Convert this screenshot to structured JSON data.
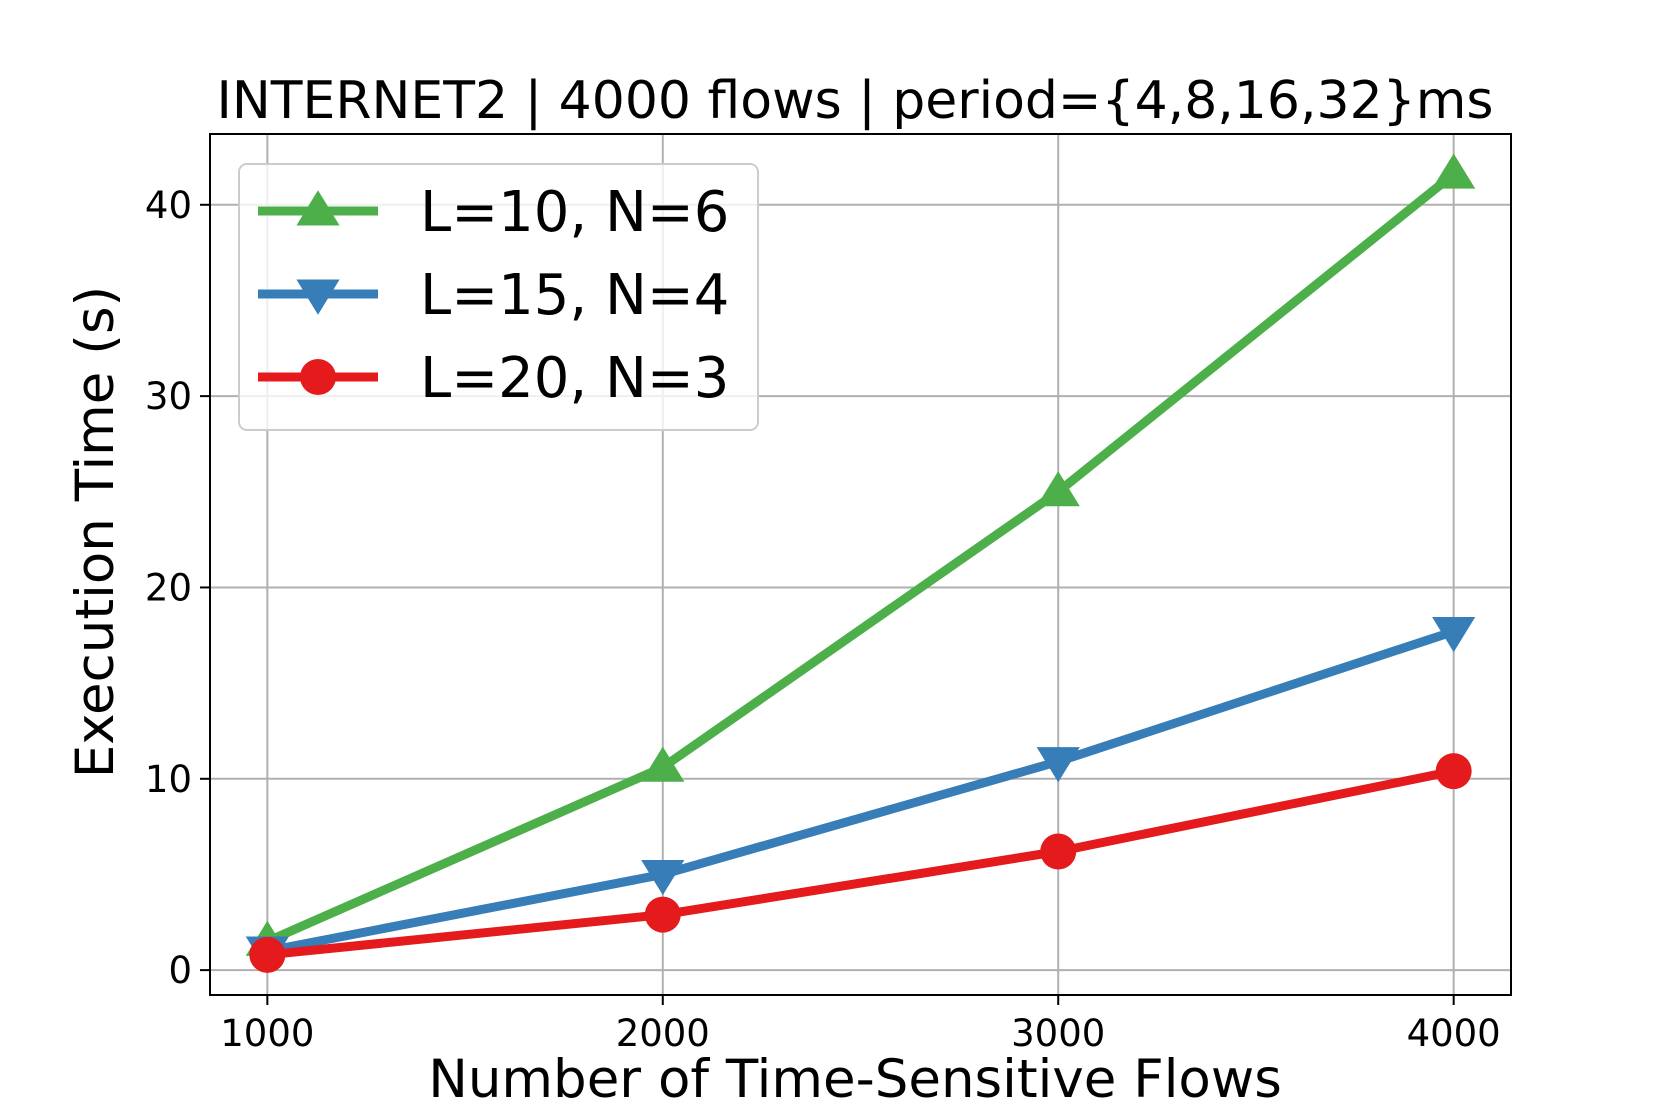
{
  "chart_data": {
    "type": "line",
    "title": "INTERNET2 | 4000 flows | period={4,8,16,32}ms",
    "xlabel": "Number of Time-Sensitive Flows",
    "ylabel": "Execution Time (s)",
    "x": [
      1000,
      2000,
      3000,
      4000
    ],
    "x_ticks": [
      1000,
      2000,
      3000,
      4000
    ],
    "x_tick_labels": [
      "1000",
      "2000",
      "3000",
      "4000"
    ],
    "xlim": [
      855,
      4145
    ],
    "y_ticks": [
      0,
      10,
      20,
      30,
      40
    ],
    "y_tick_labels": [
      "0",
      "10",
      "20",
      "30",
      "40"
    ],
    "ylim": [
      -1.3,
      43.7
    ],
    "grid": true,
    "legend_position": "top-left",
    "series": [
      {
        "name": "L=10, N=6",
        "values": [
          1.5,
          10.6,
          25.0,
          41.6
        ],
        "color": "#4daf4a",
        "marker": "triangle-up"
      },
      {
        "name": "L=15, N=4",
        "values": [
          1.0,
          5.0,
          10.9,
          17.7
        ],
        "color": "#377eb8",
        "marker": "triangle-down"
      },
      {
        "name": "L=20, N=3",
        "values": [
          0.8,
          2.9,
          6.2,
          10.4
        ],
        "color": "#e41a1c",
        "marker": "circle"
      }
    ]
  }
}
